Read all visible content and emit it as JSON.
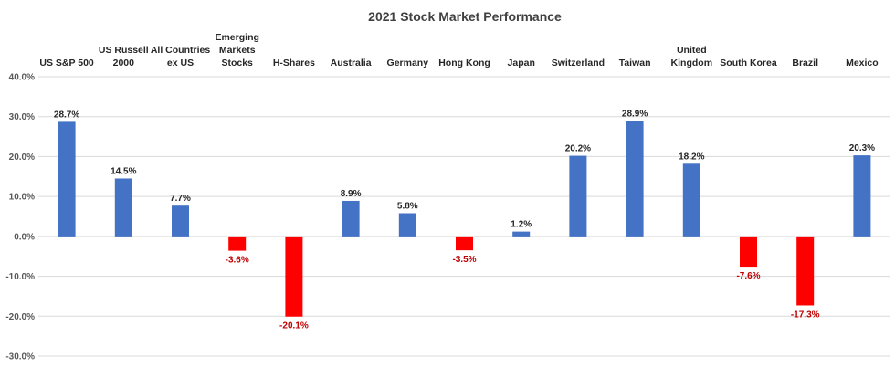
{
  "chart_data": {
    "type": "bar",
    "title": "2021 Stock Market Performance",
    "xlabel": "",
    "ylabel": "",
    "categories": [
      [
        "US S&P 500"
      ],
      [
        "US Russell",
        "2000"
      ],
      [
        "All Countries",
        "ex US"
      ],
      [
        "Emerging",
        "Markets",
        "Stocks"
      ],
      [
        "H-Shares"
      ],
      [
        "Australia"
      ],
      [
        "Germany"
      ],
      [
        "Hong Kong"
      ],
      [
        "Japan"
      ],
      [
        "Switzerland"
      ],
      [
        "Taiwan"
      ],
      [
        "United",
        "Kingdom"
      ],
      [
        "South Korea"
      ],
      [
        "Brazil"
      ],
      [
        "Mexico"
      ]
    ],
    "values": [
      28.7,
      14.5,
      7.7,
      -3.6,
      -20.1,
      8.9,
      5.8,
      -3.5,
      1.2,
      20.2,
      28.9,
      18.2,
      -7.6,
      -17.3,
      20.3
    ],
    "data_labels": [
      "28.7%",
      "14.5%",
      "7.7%",
      "-3.6%",
      "-20.1%",
      "8.9%",
      "5.8%",
      "-3.5%",
      "1.2%",
      "20.2%",
      "28.9%",
      "18.2%",
      "-7.6%",
      "-17.3%",
      "20.3%"
    ],
    "ylim": [
      -30,
      40
    ],
    "yticks": [
      40,
      30,
      20,
      10,
      0,
      -10,
      -20,
      -30
    ],
    "ytick_labels": [
      "40.0%",
      "30.0%",
      "20.0%",
      "10.0%",
      "0.0%",
      "-10.0%",
      "-20.0%",
      "-30.0%"
    ],
    "grid": true,
    "legend": "none",
    "colors": {
      "positive": "#4472C4",
      "negative": "#FF0000",
      "positive_label": "#262626",
      "negative_label": "#C00000"
    }
  }
}
